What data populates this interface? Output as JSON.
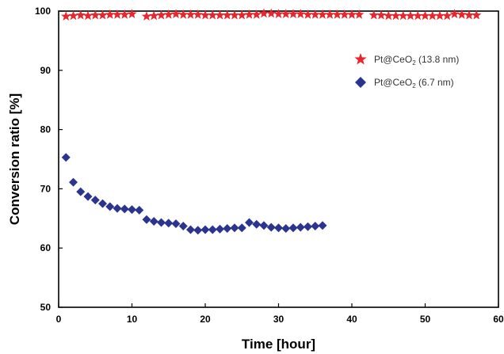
{
  "chart_data": {
    "type": "scatter",
    "xlabel": "Time [hour]",
    "ylabel": "Conversion ratio [%]",
    "xlim": [
      0,
      60
    ],
    "ylim": [
      50,
      100
    ],
    "xticks": [
      0,
      10,
      20,
      30,
      40,
      50,
      60
    ],
    "yticks": [
      50,
      60,
      70,
      80,
      90,
      100
    ],
    "grid": false,
    "legend_position": "top-right",
    "series": [
      {
        "name": "Pt@CeO2 (13.8 nm)",
        "legend_main": "Pt@CeO",
        "legend_sub": "2",
        "legend_tail": " (13.8 nm)",
        "marker": "star",
        "color": "#e8262b",
        "x": [
          1,
          2,
          3,
          4,
          5,
          6,
          7,
          8,
          9,
          10,
          12,
          13,
          14,
          15,
          16,
          17,
          18,
          19,
          20,
          21,
          22,
          23,
          24,
          25,
          26,
          27,
          28,
          29,
          30,
          31,
          32,
          33,
          34,
          35,
          36,
          37,
          38,
          39,
          40,
          41,
          43,
          44,
          45,
          46,
          47,
          48,
          49,
          50,
          51,
          52,
          53,
          54,
          55,
          56,
          57
        ],
        "y": [
          99.1,
          99.2,
          99.3,
          99.2,
          99.3,
          99.3,
          99.4,
          99.4,
          99.4,
          99.5,
          99.1,
          99.2,
          99.3,
          99.4,
          99.5,
          99.4,
          99.4,
          99.4,
          99.3,
          99.3,
          99.3,
          99.3,
          99.3,
          99.3,
          99.4,
          99.4,
          99.6,
          99.6,
          99.5,
          99.5,
          99.5,
          99.5,
          99.4,
          99.4,
          99.4,
          99.4,
          99.4,
          99.4,
          99.4,
          99.4,
          99.3,
          99.3,
          99.2,
          99.2,
          99.2,
          99.2,
          99.2,
          99.2,
          99.2,
          99.2,
          99.2,
          99.5,
          99.4,
          99.3,
          99.3
        ]
      },
      {
        "name": "Pt@CeO2 (6.7 nm)",
        "legend_main": "Pt@CeO",
        "legend_sub": "2",
        "legend_tail": " (6.7 nm)",
        "marker": "diamond",
        "color": "#2b3590",
        "x": [
          1,
          2,
          3,
          4,
          5,
          6,
          7,
          8,
          9,
          10,
          11,
          12,
          13,
          14,
          15,
          16,
          17,
          18,
          19,
          20,
          21,
          22,
          23,
          24,
          25,
          26,
          27,
          28,
          29,
          30,
          31,
          32,
          33,
          34,
          35,
          36
        ],
        "y": [
          75.3,
          71.1,
          69.5,
          68.7,
          68.1,
          67.5,
          67.0,
          66.7,
          66.6,
          66.5,
          66.4,
          64.8,
          64.5,
          64.3,
          64.2,
          64.1,
          63.7,
          63.1,
          63.0,
          63.1,
          63.1,
          63.2,
          63.3,
          63.4,
          63.4,
          64.3,
          64.0,
          63.8,
          63.5,
          63.4,
          63.3,
          63.4,
          63.5,
          63.6,
          63.7,
          63.8
        ]
      }
    ]
  }
}
